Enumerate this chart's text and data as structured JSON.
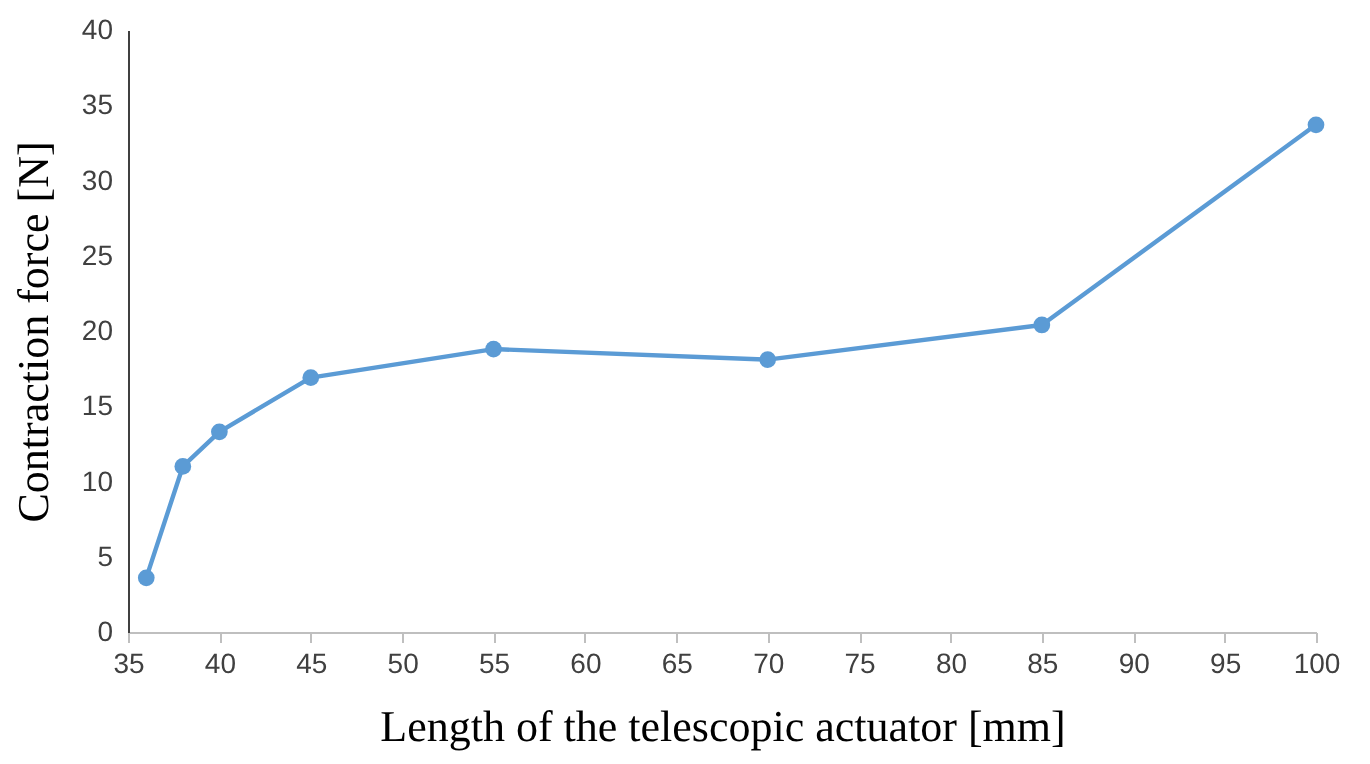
{
  "chart_data": {
    "type": "line",
    "xlabel": "Length of the telescopic actuator [mm]",
    "ylabel": "Contraction force [N]",
    "x": [
      36,
      38,
      40,
      45,
      55,
      70,
      85,
      100
    ],
    "series": [
      {
        "color": "#5b9bd5",
        "values": [
          3.6,
          11.0,
          13.3,
          16.9,
          18.8,
          18.1,
          20.4,
          33.7
        ]
      }
    ],
    "xlim": [
      35,
      100
    ],
    "xticks": [
      35,
      40,
      45,
      50,
      55,
      60,
      65,
      70,
      75,
      80,
      85,
      90,
      95,
      100
    ],
    "ylim": [
      0,
      40
    ],
    "yticks": [
      0,
      5,
      10,
      15,
      20,
      25,
      30,
      35,
      40
    ],
    "grid": false,
    "legend": false,
    "marker": "circle",
    "line_style": "solid"
  }
}
